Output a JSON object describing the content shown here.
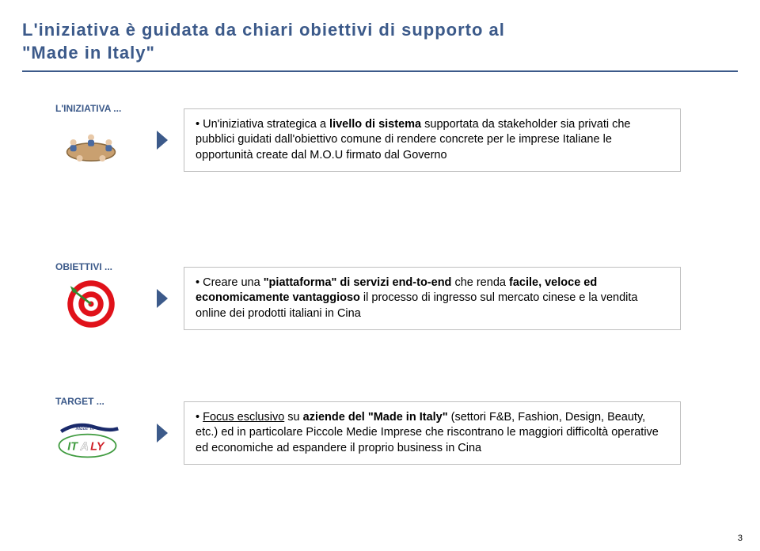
{
  "colors": {
    "title": "#3c5a8a",
    "title_rule": "#3c5a8a",
    "arrow": "#3c5a8a",
    "label": "#3c5a8a",
    "box_border": "#bfbfbf",
    "body_text": "#000000",
    "target_red": "#e0121a",
    "target_white": "#ffffff",
    "dart_green": "#2e8b2e",
    "italy_green": "#3f9b3f",
    "italy_red": "#cf2028",
    "italy_brush": "#1a2a6b",
    "table_wood": "#c9a070",
    "table_edge": "#8a6a40",
    "person_blue": "#4a6aa0",
    "person_head": "#e8c9a8"
  },
  "title": {
    "line1": "L'iniziativa è guidata da chiari obiettivi di supporto al",
    "line2": "\"Made in Italy\""
  },
  "rows": [
    {
      "label": "L'INIZIATIVA ...",
      "html": "Un'iniziativa strategica a <b>livello di sistema</b> supportata da stakeholder sia privati che pubblici guidati dall'obiettivo comune di rendere concrete per le imprese Italiane le opportunità create dal M.O.U firmato dal Governo"
    },
    {
      "label": "OBIETTIVI ...",
      "html": "Creare una <b>\"piattaforma\" di servizi end-to-end</b> che renda <b>facile, veloce ed economicamente vantaggioso</b> il processo di ingresso sul mercato cinese e la vendita online dei prodotti italiani in Cina"
    },
    {
      "label": "TARGET ...",
      "html": "<u>Focus esclusivo</u> su <b>aziende del \"Made in Italy\"</b> (settori F&amp;B, Fashion, Design, Beauty, etc.) ed in particolare Piccole Medie Imprese che riscontrano le maggiori difficoltà operative ed economiche ad espandere il proprio business in Cina"
    }
  ],
  "layout": {
    "row_tops": [
      130,
      330,
      500
    ],
    "title_fontsize": 22,
    "label_fontsize": 12,
    "body_fontsize": 14.5
  },
  "page_number": "3"
}
